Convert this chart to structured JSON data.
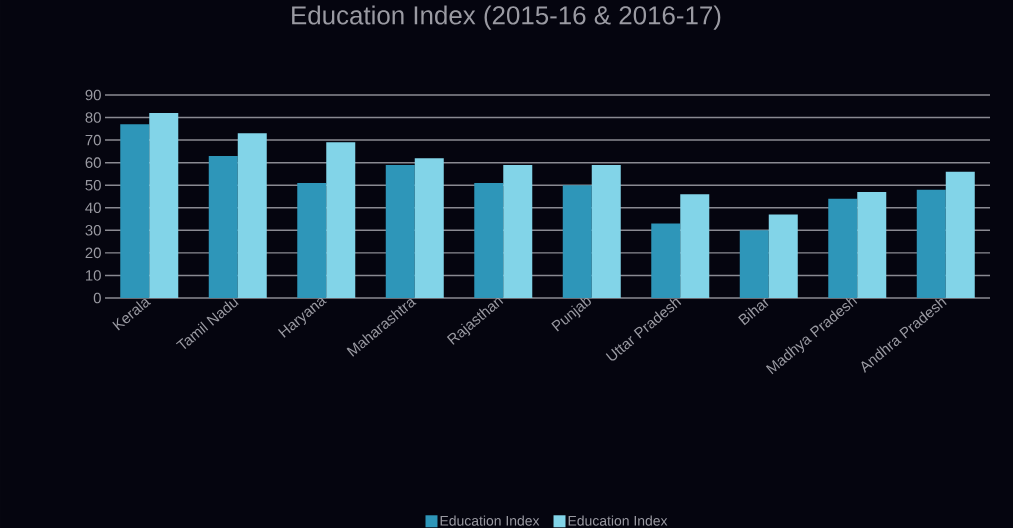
{
  "chart_data": {
    "type": "bar",
    "title": "Education Index (2015-16 & 2016-17)",
    "categories": [
      "Kerala",
      "Tamil Nadu",
      "Haryana",
      "Maharashtra",
      "Rajasthan",
      "Punjab",
      "Uttar Pradesh",
      "Bihar",
      "Madhya Pradesh",
      "Andhra Pradesh"
    ],
    "series": [
      {
        "name": "Education Index",
        "color": "#2e96b9",
        "values": [
          77,
          63,
          51,
          59,
          51,
          50,
          33,
          30,
          44,
          48
        ]
      },
      {
        "name": "Education Index",
        "color": "#82d4e8",
        "values": [
          82,
          73,
          69,
          62,
          59,
          59,
          46,
          37,
          47,
          56
        ]
      }
    ],
    "ylim": [
      0,
      90
    ],
    "yticks": [
      0,
      10,
      20,
      30,
      40,
      50,
      60,
      70,
      80,
      90
    ],
    "grid": "y",
    "legend": "bottom"
  }
}
